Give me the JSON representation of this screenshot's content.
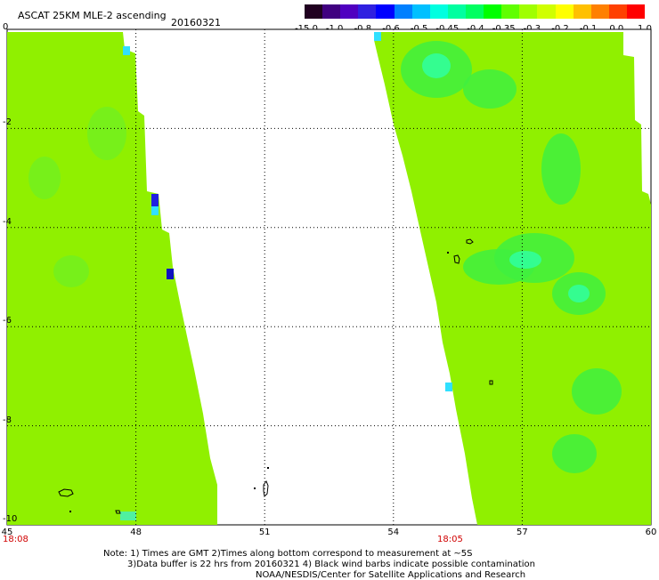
{
  "header": {
    "title": "ASCAT 25KM MLE-2 ascending",
    "date": "20160321"
  },
  "colorbar": {
    "ticks": [
      "-15.0",
      "-1.0",
      "-0.8",
      "-0.6",
      "-0.5",
      "-0.45",
      "-0.4",
      "-0.35",
      "-0.3",
      "-0.2",
      "-0.1",
      "0.0",
      "1.0"
    ],
    "colors": [
      "#200020",
      "#400080",
      "#5000c0",
      "#3020e0",
      "#0000ff",
      "#0080ff",
      "#00c0ff",
      "#00ffe0",
      "#00ffa0",
      "#00ff60",
      "#00ff00",
      "#60ff00",
      "#a0ff00",
      "#d0ff00",
      "#ffff00",
      "#ffc000",
      "#ff8000",
      "#ff4000",
      "#ff0000"
    ]
  },
  "map": {
    "lon_ticks": [
      "45",
      "48",
      "51",
      "54",
      "57",
      "60"
    ],
    "lat_ticks": [
      "0",
      "-2",
      "-4",
      "-6",
      "-8",
      "-10"
    ],
    "lon_range": [
      45,
      60
    ],
    "lat_range": [
      0,
      -10
    ],
    "pass_times": [
      "18:08",
      "18:05"
    ],
    "swath_color": "#90f000"
  },
  "notes": {
    "line1": "Note: 1) Times are GMT 2)Times along bottom correspond to measurement at ~5S",
    "line2": "3)Data buffer is 22 hrs from 20160321 4) Black wind barbs indicate possible contamination",
    "line3": "NOAA/NESDIS/Center for Satellite Applications and Research"
  }
}
